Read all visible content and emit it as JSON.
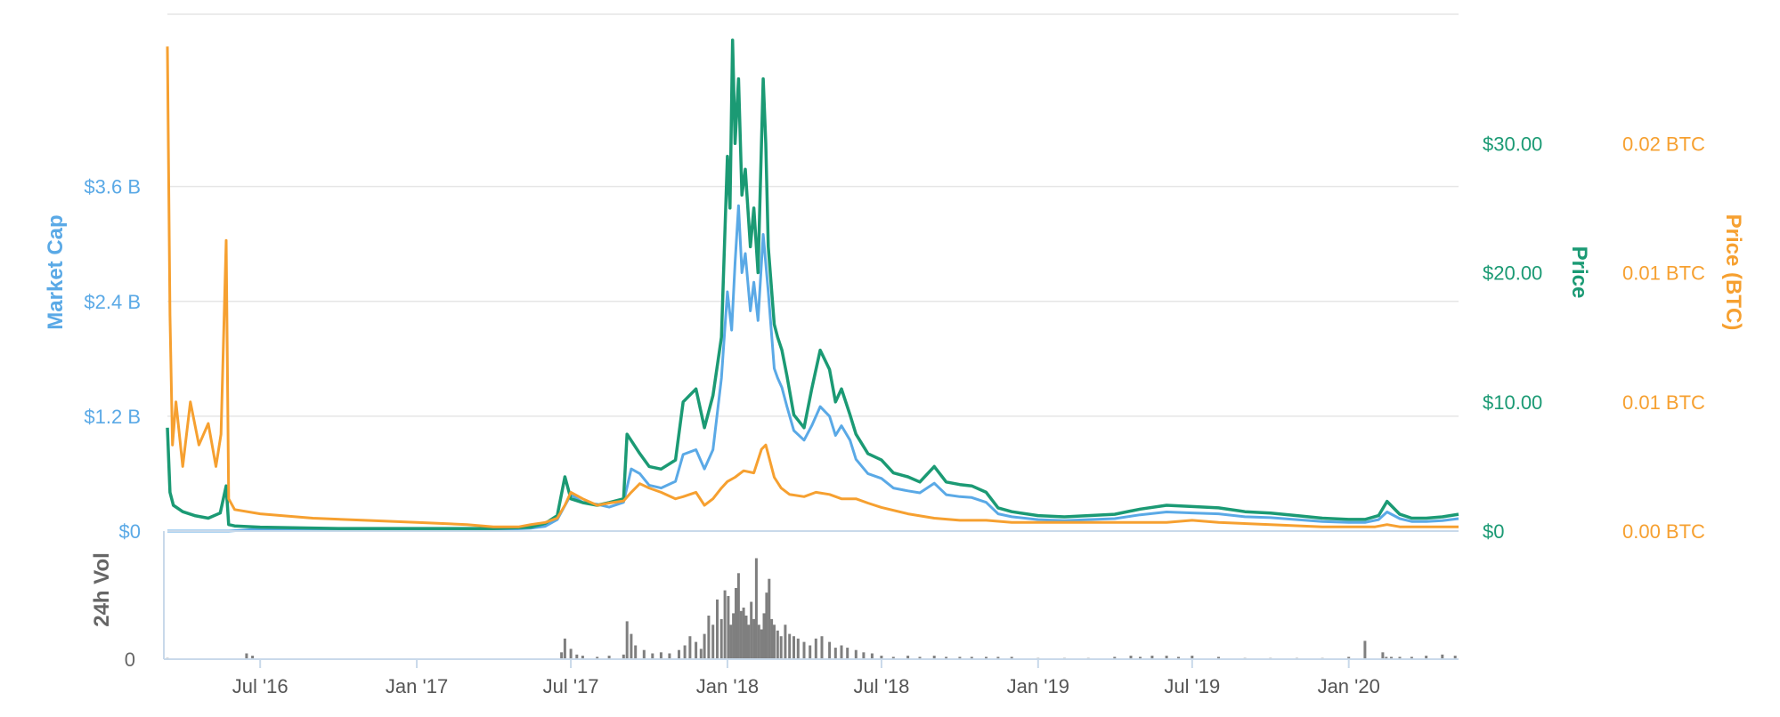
{
  "chart_data": [
    {
      "type": "line",
      "panel": "main",
      "x_type": "date",
      "title": "",
      "subtitle": "",
      "grid": true,
      "legend": "none",
      "x_ticks": [
        "Jul '16",
        "Jan '17",
        "Jul '17",
        "Jan '18",
        "Jul '18",
        "Jan '19",
        "Jul '19",
        "Jan '20"
      ],
      "axes": [
        {
          "id": "market_cap",
          "label": "Market Cap",
          "color": "#5aa9e6",
          "side": "left",
          "ylim": [
            0,
            5.4
          ],
          "unit": "B USD",
          "ticks": [
            {
              "value": 0,
              "label": "$0"
            },
            {
              "value": 1.2,
              "label": "$1.2 B"
            },
            {
              "value": 2.4,
              "label": "$2.4 B"
            },
            {
              "value": 3.6,
              "label": "$3.6 B"
            }
          ]
        },
        {
          "id": "price",
          "label": "Price",
          "color": "#1b9a74",
          "side": "right",
          "ylim": [
            0,
            40
          ],
          "unit": "USD",
          "ticks": [
            {
              "value": 0,
              "label": "$0"
            },
            {
              "value": 10,
              "label": "$10.00"
            },
            {
              "value": 20,
              "label": "$20.00"
            },
            {
              "value": 30,
              "label": "$30.00"
            }
          ]
        },
        {
          "id": "price_btc",
          "label": "Price (BTC)",
          "color": "#f6a030",
          "side": "right",
          "ylim": [
            0,
            0.024
          ],
          "unit": "BTC",
          "ticks": [
            {
              "value": 0,
              "label": "0.00 BTC"
            },
            {
              "value": 0.006,
              "label": "0.01 BTC"
            },
            {
              "value": 0.012,
              "label": "0.01 BTC"
            },
            {
              "value": 0.018,
              "label": "0.02 BTC"
            }
          ]
        }
      ],
      "series": [
        {
          "axis": "market_cap",
          "color": "#5aa9e6",
          "x": [
            "2016-03-14",
            "2016-05-15",
            "2016-05-25",
            "2016-07-01",
            "2016-10-01",
            "2017-01-01",
            "2017-04-01",
            "2017-05-15",
            "2017-06-01",
            "2017-06-15",
            "2017-07-01",
            "2017-07-15",
            "2017-08-01",
            "2017-08-15",
            "2017-09-01",
            "2017-09-10",
            "2017-09-20",
            "2017-10-01",
            "2017-10-15",
            "2017-11-01",
            "2017-11-10",
            "2017-11-25",
            "2017-12-05",
            "2017-12-15",
            "2017-12-25",
            "2018-01-01",
            "2018-01-06",
            "2018-01-10",
            "2018-01-14",
            "2018-01-18",
            "2018-01-22",
            "2018-01-28",
            "2018-02-01",
            "2018-02-06",
            "2018-02-12",
            "2018-02-18",
            "2018-02-25",
            "2018-03-01",
            "2018-03-06",
            "2018-03-12",
            "2018-03-20",
            "2018-04-01",
            "2018-04-10",
            "2018-04-20",
            "2018-05-01",
            "2018-05-08",
            "2018-05-15",
            "2018-05-25",
            "2018-06-01",
            "2018-06-15",
            "2018-07-01",
            "2018-07-15",
            "2018-08-01",
            "2018-08-15",
            "2018-09-01",
            "2018-09-15",
            "2018-10-01",
            "2018-10-15",
            "2018-11-01",
            "2018-11-15",
            "2018-12-01",
            "2019-01-01",
            "2019-02-01",
            "2019-03-01",
            "2019-04-01",
            "2019-05-01",
            "2019-06-01",
            "2019-07-01",
            "2019-08-01",
            "2019-09-01",
            "2019-10-01",
            "2019-11-01",
            "2019-12-01",
            "2020-01-01",
            "2020-01-20",
            "2020-02-05",
            "2020-02-15",
            "2020-03-01",
            "2020-03-15",
            "2020-04-01",
            "2020-04-20",
            "2020-05-09"
          ],
          "values": [
            0,
            0,
            0,
            0.02,
            0.01,
            0.005,
            0.01,
            0.03,
            0.05,
            0.12,
            0.38,
            0.3,
            0.28,
            0.25,
            0.3,
            0.65,
            0.6,
            0.48,
            0.45,
            0.52,
            0.8,
            0.85,
            0.65,
            0.85,
            1.6,
            2.5,
            2.1,
            2.8,
            3.4,
            2.7,
            2.9,
            2.3,
            2.6,
            2.2,
            3.1,
            2.5,
            1.7,
            1.6,
            1.5,
            1.3,
            1.05,
            0.95,
            1.1,
            1.3,
            1.2,
            1.0,
            1.1,
            0.95,
            0.75,
            0.6,
            0.55,
            0.45,
            0.42,
            0.4,
            0.5,
            0.38,
            0.36,
            0.35,
            0.3,
            0.18,
            0.15,
            0.12,
            0.11,
            0.12,
            0.13,
            0.17,
            0.2,
            0.19,
            0.18,
            0.15,
            0.14,
            0.12,
            0.1,
            0.09,
            0.09,
            0.12,
            0.2,
            0.13,
            0.1,
            0.1,
            0.11,
            0.13
          ]
        },
        {
          "axis": "price",
          "color": "#1b9a74",
          "x": [
            "2016-03-14",
            "2016-03-17",
            "2016-03-21",
            "2016-04-01",
            "2016-04-15",
            "2016-05-01",
            "2016-05-15",
            "2016-05-22",
            "2016-05-25",
            "2016-06-01",
            "2016-07-01",
            "2016-10-01",
            "2017-01-01",
            "2017-04-01",
            "2017-05-15",
            "2017-06-01",
            "2017-06-15",
            "2017-06-24",
            "2017-07-01",
            "2017-07-15",
            "2017-08-01",
            "2017-08-15",
            "2017-09-01",
            "2017-09-05",
            "2017-09-20",
            "2017-10-01",
            "2017-10-15",
            "2017-11-01",
            "2017-11-10",
            "2017-11-25",
            "2017-12-05",
            "2017-12-15",
            "2017-12-25",
            "2018-01-01",
            "2018-01-04",
            "2018-01-07",
            "2018-01-10",
            "2018-01-14",
            "2018-01-18",
            "2018-01-22",
            "2018-01-28",
            "2018-02-01",
            "2018-02-06",
            "2018-02-12",
            "2018-02-15",
            "2018-02-18",
            "2018-02-25",
            "2018-03-01",
            "2018-03-06",
            "2018-03-12",
            "2018-03-20",
            "2018-04-01",
            "2018-04-10",
            "2018-04-20",
            "2018-05-01",
            "2018-05-08",
            "2018-05-15",
            "2018-05-25",
            "2018-06-01",
            "2018-06-15",
            "2018-07-01",
            "2018-07-15",
            "2018-08-01",
            "2018-08-15",
            "2018-09-01",
            "2018-09-15",
            "2018-10-01",
            "2018-10-15",
            "2018-11-01",
            "2018-11-15",
            "2018-12-01",
            "2019-01-01",
            "2019-02-01",
            "2019-03-01",
            "2019-04-01",
            "2019-05-01",
            "2019-06-01",
            "2019-07-01",
            "2019-08-01",
            "2019-09-01",
            "2019-10-01",
            "2019-11-01",
            "2019-12-01",
            "2020-01-01",
            "2020-01-20",
            "2020-02-05",
            "2020-02-15",
            "2020-03-01",
            "2020-03-15",
            "2020-04-01",
            "2020-04-20",
            "2020-05-09"
          ],
          "values": [
            8,
            3,
            2,
            1.5,
            1.2,
            1,
            1.4,
            3.5,
            0.5,
            0.4,
            0.3,
            0.2,
            0.2,
            0.2,
            0.3,
            0.6,
            1.2,
            4.2,
            2.5,
            2.2,
            2.0,
            2.2,
            2.5,
            7.5,
            6.0,
            5.0,
            4.8,
            5.5,
            10.0,
            11.0,
            8.0,
            10.5,
            15.0,
            29.0,
            25.0,
            38.0,
            30.0,
            35.0,
            26.0,
            28.0,
            22.0,
            25.0,
            20.0,
            35.0,
            30.0,
            22.0,
            16.0,
            15.0,
            14.0,
            12.0,
            9.0,
            8.0,
            11.0,
            14.0,
            12.5,
            10.0,
            11.0,
            9.0,
            7.5,
            6.0,
            5.5,
            4.5,
            4.2,
            3.8,
            5.0,
            3.8,
            3.6,
            3.5,
            3.0,
            1.8,
            1.5,
            1.2,
            1.1,
            1.2,
            1.3,
            1.7,
            2.0,
            1.9,
            1.8,
            1.5,
            1.4,
            1.2,
            1.0,
            0.9,
            0.9,
            1.2,
            2.3,
            1.3,
            1.0,
            1.0,
            1.1,
            1.3
          ]
        },
        {
          "axis": "price_btc",
          "color": "#f6a030",
          "x": [
            "2016-03-14",
            "2016-03-17",
            "2016-03-20",
            "2016-03-24",
            "2016-04-01",
            "2016-04-10",
            "2016-04-20",
            "2016-05-01",
            "2016-05-10",
            "2016-05-16",
            "2016-05-22",
            "2016-05-25",
            "2016-06-01",
            "2016-07-01",
            "2016-09-01",
            "2016-11-01",
            "2017-01-01",
            "2017-03-01",
            "2017-04-01",
            "2017-05-01",
            "2017-05-15",
            "2017-06-01",
            "2017-06-15",
            "2017-06-24",
            "2017-07-01",
            "2017-07-15",
            "2017-08-01",
            "2017-08-15",
            "2017-09-01",
            "2017-09-10",
            "2017-09-20",
            "2017-10-01",
            "2017-10-15",
            "2017-11-01",
            "2017-11-10",
            "2017-11-25",
            "2017-12-05",
            "2017-12-15",
            "2017-12-25",
            "2018-01-01",
            "2018-01-10",
            "2018-01-20",
            "2018-02-01",
            "2018-02-10",
            "2018-02-15",
            "2018-02-25",
            "2018-03-05",
            "2018-03-15",
            "2018-04-01",
            "2018-04-15",
            "2018-05-01",
            "2018-05-15",
            "2018-06-01",
            "2018-06-15",
            "2018-07-01",
            "2018-08-01",
            "2018-09-01",
            "2018-10-01",
            "2018-11-01",
            "2018-12-01",
            "2019-01-01",
            "2019-03-01",
            "2019-05-01",
            "2019-06-01",
            "2019-07-01",
            "2019-08-01",
            "2019-10-01",
            "2019-12-01",
            "2020-01-01",
            "2020-02-01",
            "2020-02-15",
            "2020-03-01",
            "2020-04-01",
            "2020-05-09"
          ],
          "values": [
            0.0225,
            0.01,
            0.004,
            0.006,
            0.003,
            0.006,
            0.004,
            0.005,
            0.003,
            0.0045,
            0.0135,
            0.0015,
            0.001,
            0.0008,
            0.0006,
            0.0005,
            0.0004,
            0.0003,
            0.0002,
            0.0002,
            0.0003,
            0.0004,
            0.0006,
            0.0012,
            0.0018,
            0.0015,
            0.0012,
            0.0013,
            0.0014,
            0.0018,
            0.0022,
            0.002,
            0.0018,
            0.0015,
            0.0016,
            0.0018,
            0.0012,
            0.0015,
            0.002,
            0.0023,
            0.0025,
            0.0028,
            0.0027,
            0.0038,
            0.004,
            0.0025,
            0.002,
            0.0017,
            0.0016,
            0.0018,
            0.0017,
            0.0015,
            0.0015,
            0.0013,
            0.0011,
            0.0008,
            0.0006,
            0.0005,
            0.0005,
            0.0004,
            0.0004,
            0.0004,
            0.0004,
            0.0004,
            0.0005,
            0.0004,
            0.0003,
            0.0002,
            0.0002,
            0.0002,
            0.0003,
            0.0002,
            0.0002,
            0.0002
          ]
        }
      ]
    },
    {
      "type": "bar",
      "panel": "volume",
      "x_type": "date",
      "ylabel": "24h Vol",
      "y_ticks": [
        {
          "value": 0,
          "label": "0"
        }
      ],
      "color": "#7f7f7f",
      "ylim": [
        0,
        1.0
      ],
      "x": [
        "2016-03-14",
        "2016-06-15",
        "2016-06-22",
        "2017-06-20",
        "2017-06-24",
        "2017-07-01",
        "2017-07-08",
        "2017-07-15",
        "2017-08-01",
        "2017-08-15",
        "2017-09-01",
        "2017-09-05",
        "2017-09-10",
        "2017-09-15",
        "2017-09-25",
        "2017-10-05",
        "2017-10-15",
        "2017-10-25",
        "2017-11-05",
        "2017-11-12",
        "2017-11-18",
        "2017-11-25",
        "2017-12-01",
        "2017-12-05",
        "2017-12-10",
        "2017-12-15",
        "2017-12-20",
        "2017-12-25",
        "2017-12-29",
        "2018-01-02",
        "2018-01-05",
        "2018-01-08",
        "2018-01-11",
        "2018-01-14",
        "2018-01-17",
        "2018-01-20",
        "2018-01-23",
        "2018-01-26",
        "2018-01-29",
        "2018-02-01",
        "2018-02-04",
        "2018-02-07",
        "2018-02-10",
        "2018-02-13",
        "2018-02-16",
        "2018-02-19",
        "2018-02-22",
        "2018-02-25",
        "2018-03-01",
        "2018-03-05",
        "2018-03-10",
        "2018-03-15",
        "2018-03-20",
        "2018-03-25",
        "2018-04-01",
        "2018-04-08",
        "2018-04-15",
        "2018-04-22",
        "2018-05-01",
        "2018-05-08",
        "2018-05-15",
        "2018-05-22",
        "2018-06-01",
        "2018-06-10",
        "2018-06-20",
        "2018-07-01",
        "2018-07-15",
        "2018-08-01",
        "2018-08-15",
        "2018-09-01",
        "2018-09-15",
        "2018-10-01",
        "2018-10-15",
        "2018-11-01",
        "2018-11-15",
        "2018-12-01",
        "2019-01-01",
        "2019-02-01",
        "2019-03-01",
        "2019-04-01",
        "2019-04-20",
        "2019-05-01",
        "2019-05-15",
        "2019-06-01",
        "2019-06-15",
        "2019-07-01",
        "2019-08-01",
        "2019-09-01",
        "2019-10-01",
        "2019-11-01",
        "2019-12-01",
        "2020-01-01",
        "2020-01-20",
        "2020-02-10",
        "2020-02-14",
        "2020-02-20",
        "2020-03-01",
        "2020-03-15",
        "2020-04-01",
        "2020-04-20",
        "2020-05-05"
      ],
      "values": [
        0.01,
        0.05,
        0.03,
        0.06,
        0.18,
        0.09,
        0.04,
        0.03,
        0.02,
        0.03,
        0.04,
        0.33,
        0.22,
        0.12,
        0.08,
        0.05,
        0.06,
        0.05,
        0.08,
        0.12,
        0.2,
        0.15,
        0.09,
        0.22,
        0.38,
        0.3,
        0.52,
        0.35,
        0.6,
        0.55,
        0.3,
        0.4,
        0.62,
        0.75,
        0.42,
        0.45,
        0.38,
        0.3,
        0.5,
        0.35,
        0.88,
        0.3,
        0.26,
        0.4,
        0.58,
        0.7,
        0.35,
        0.3,
        0.25,
        0.2,
        0.3,
        0.22,
        0.2,
        0.18,
        0.15,
        0.12,
        0.18,
        0.2,
        0.15,
        0.1,
        0.12,
        0.1,
        0.08,
        0.06,
        0.05,
        0.03,
        0.02,
        0.03,
        0.02,
        0.03,
        0.02,
        0.02,
        0.02,
        0.02,
        0.02,
        0.02,
        0.01,
        0.01,
        0.01,
        0.02,
        0.03,
        0.02,
        0.03,
        0.03,
        0.02,
        0.03,
        0.02,
        0.01,
        0.01,
        0.01,
        0.01,
        0.02,
        0.16,
        0.06,
        0.02,
        0.02,
        0.02,
        0.02,
        0.03,
        0.04,
        0.03
      ]
    }
  ]
}
